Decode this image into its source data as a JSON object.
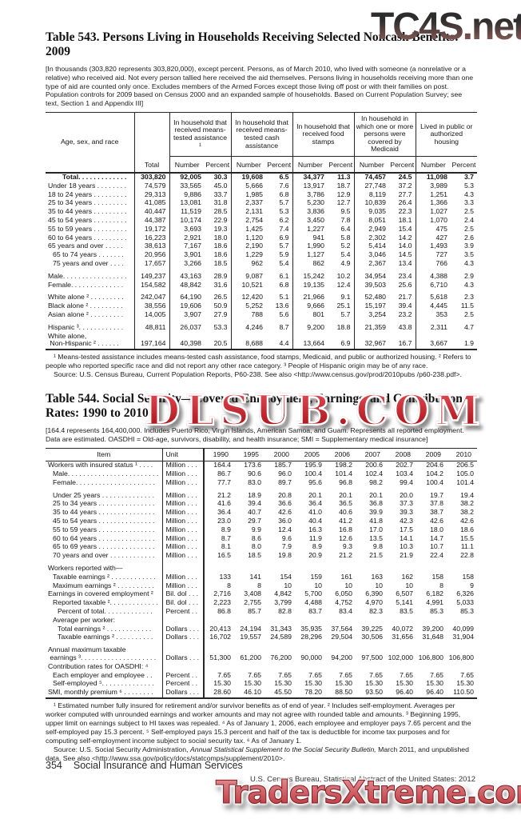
{
  "watermarks": {
    "top_right": "TC4S.net",
    "middle": "DLSUB.COM",
    "bottom": "TradersXtreme.com"
  },
  "table543": {
    "title": "Table 543. Persons Living in Households Receiving Selected Noncash Benefits: 2009",
    "note": "[In thousands (303,820 represents 303,820,000), except percent. Persons, as of March 2010, who lived with someone (a nonrelative or a relative) who received aid. Not every person tallied here received the aid themselves. Persons living in households receiving more than one type of aid are counted only once. Excludes members of the Armed Forces except those living off post or with their families on post. Population controls for 2009 based on Census 2000 and an expanded sample of households. Based on Current Population Survey; see text, Section 1 and Appendix III]",
    "header": {
      "stub": "Age, sex, and race",
      "total": "Total",
      "groups": [
        "In household that received means-tested assistance ¹",
        "In household that received means-tested cash assistance",
        "In household that received food stamps",
        "In household in which one or more persons were covered by Medicaid",
        "Lived in public or authorized housing"
      ],
      "sub": [
        "Number",
        "Percent"
      ]
    },
    "rows": [
      {
        "label": "Total. . . . . . . . . . . . .",
        "bold": true,
        "indent": 3,
        "values": [
          "303,820",
          "92,005",
          "30.3",
          "19,608",
          "6.5",
          "34,377",
          "11.3",
          "74,457",
          "24.5",
          "11,098",
          "3.7"
        ]
      },
      {
        "label": "Under 18 years . . . . . . . .",
        "values": [
          "74,579",
          "33,565",
          "45.0",
          "5,666",
          "7.6",
          "13,917",
          "18.7",
          "27,748",
          "37.2",
          "3,989",
          "5.3"
        ]
      },
      {
        "label": "18 to 24 years . . . . . . . . .",
        "values": [
          "29,313",
          "9,886",
          "33.7",
          "1,985",
          "6.8",
          "3,786",
          "12.9",
          "8,119",
          "27.7",
          "1,251",
          "4.3"
        ]
      },
      {
        "label": "25 to 34 years . . . . . . . . .",
        "values": [
          "41,085",
          "13,081",
          "31.8",
          "2,337",
          "5.7",
          "5,230",
          "12.7",
          "10,839",
          "26.4",
          "1,366",
          "3.3"
        ]
      },
      {
        "label": "35 to 44 years . . . . . . . . .",
        "values": [
          "40,447",
          "11,519",
          "28.5",
          "2,131",
          "5.3",
          "3,836",
          "9.5",
          "9,035",
          "22.3",
          "1,027",
          "2.5"
        ]
      },
      {
        "label": "45 to 54 years . . . . . . . . .",
        "values": [
          "44,387",
          "10,174",
          "22.9",
          "2,754",
          "6.2",
          "3,450",
          "7.8",
          "8,051",
          "18.1",
          "1,070",
          "2.4"
        ]
      },
      {
        "label": "55 to 59 years . . . . . . . . .",
        "values": [
          "19,172",
          "3,693",
          "19.3",
          "1,425",
          "7.4",
          "1,227",
          "6.4",
          "2,949",
          "15.4",
          "475",
          "2.5"
        ]
      },
      {
        "label": "60 to 64 years . . . . . . . . .",
        "values": [
          "16,223",
          "2,921",
          "18.0",
          "1,120",
          "6.9",
          "941",
          "5.8",
          "2,302",
          "14.2",
          "427",
          "2.6"
        ]
      },
      {
        "label": "65 years and over . . . . .",
        "values": [
          "38,613",
          "7,167",
          "18.6",
          "2,190",
          "5.7",
          "1,990",
          "5.2",
          "5,414",
          "14.0",
          "1,493",
          "3.9"
        ]
      },
      {
        "label": "65 to 74 years . . . . . . .",
        "indent": 1,
        "values": [
          "20,956",
          "3,901",
          "18.6",
          "1,229",
          "5.9",
          "1,127",
          "5.4",
          "3,046",
          "14.5",
          "727",
          "3.5"
        ]
      },
      {
        "label": "75 years and over . . . .",
        "indent": 1,
        "values": [
          "17,657",
          "3,266",
          "18.5",
          "962",
          "5.4",
          "862",
          "4.9",
          "2,367",
          "13.4",
          "766",
          "4.3"
        ]
      },
      {
        "label": "Male. . . . . . . . . . . . . . . . .",
        "gap": true,
        "values": [
          "149,237",
          "43,163",
          "28.9",
          "9,087",
          "6.1",
          "15,242",
          "10.2",
          "34,954",
          "23.4",
          "4,388",
          "2.9"
        ]
      },
      {
        "label": "Female. . . . . . . . . . . . . .",
        "values": [
          "154,582",
          "48,842",
          "31.6",
          "10,521",
          "6.8",
          "19,135",
          "12.4",
          "39,503",
          "25.6",
          "6,710",
          "4.3"
        ]
      },
      {
        "label": "White alone ² . . . . . . . . .",
        "gap": true,
        "values": [
          "242,047",
          "64,190",
          "26.5",
          "12,420",
          "5.1",
          "21,966",
          "9.1",
          "52,480",
          "21.7",
          "5,618",
          "2.3"
        ]
      },
      {
        "label": "Black alone ² . . . . . . . . .",
        "values": [
          "38,556",
          "19,606",
          "50.9",
          "5,252",
          "13.6",
          "9,666",
          "25.1",
          "15,197",
          "39.4",
          "4,445",
          "11.5"
        ]
      },
      {
        "label": "Asian alone ² . . . . . . . . .",
        "values": [
          "14,005",
          "3,907",
          "27.9",
          "788",
          "5.6",
          "801",
          "5.7",
          "3,254",
          "23.2",
          "353",
          "2.5"
        ]
      },
      {
        "label": "Hispanic ³. . . . . . . . . . . .",
        "gap": true,
        "values": [
          "48,811",
          "26,037",
          "53.3",
          "4,246",
          "8.7",
          "9,200",
          "18.8",
          "21,359",
          "43.8",
          "2,311",
          "4.7"
        ]
      },
      {
        "label": "White alone,",
        "label2": " Non-Hispanic ² . . . . . .",
        "values": [
          "197,164",
          "40,398",
          "20.5",
          "8,688",
          "4.4",
          "13,664",
          "6.9",
          "32,967",
          "16.7",
          "3,667",
          "1.9"
        ]
      }
    ],
    "footnotes": {
      "notes": "¹ Means-tested assistance includes means-tested cash assistance, food stamps, Medicaid, and public or authorized housing. ² Refers to people who reported specific race and did not report any other race category. ³ People of Hispanic origin may be of any race.",
      "source": "Source: U.S. Census Bureau, Current Population Reports,  P60-238. See also <http://www.census.gov/prod/2010pubs /p60-238.pdf>."
    }
  },
  "table544": {
    "title": "Table 544. Social Security—Covered Employment, Earnings, and Contribution Rates: 1990 to 2010",
    "note": "[164.4 represents 164,400,000. Includes Puerto Rico, Virgin Islands, American Samoa, and Guam. Represents all reported employment. Data are estimated. OASDHI = Old-age, survivors, disability, and health insurance; SMI = Supplementary medical insurance]",
    "columns": [
      "Item",
      "Unit",
      "1990",
      "1995",
      "2000",
      "2005",
      "2006",
      "2007",
      "2008",
      "2009",
      "2010"
    ],
    "rows": [
      {
        "label": "Workers with insured status ¹ . . . .",
        "unit": "Million . . .",
        "values": [
          "164.4",
          "173.6",
          "185.7",
          "195.9",
          "198.2",
          "200.6",
          "202.7",
          "204.6",
          "206.5"
        ]
      },
      {
        "label": "Male. . . . . . . . . . . . . . . . . . . . . . . .",
        "indent": 1,
        "unit": "Million . . .",
        "values": [
          "86.7",
          "90.6",
          "96.0",
          "100.4",
          "101.4",
          "102.4",
          "103.4",
          "104.2",
          "105.0"
        ]
      },
      {
        "label": "Female. . . . . . . . . . . . . . . . . . . . .",
        "indent": 1,
        "unit": "Million . . .",
        "values": [
          "77.7",
          "83.0",
          "89.7",
          "95.6",
          "96.8",
          "98.2",
          "99.4",
          "100.4",
          "101.4"
        ]
      },
      {
        "label": "Under 25 years . . . . . . . . . . . . . .",
        "indent": 1,
        "gap": true,
        "unit": "Million . . .",
        "values": [
          "21.2",
          "18.9",
          "20.8",
          "20.1",
          "20.1",
          "20.1",
          "20.0",
          "19.7",
          "19.4"
        ]
      },
      {
        "label": "25 to 34 years . . . . . . . . . . . . . . .",
        "indent": 1,
        "unit": "Million . . .",
        "values": [
          "41.6",
          "39.4",
          "36.6",
          "36.4",
          "36.5",
          "36.8",
          "37.3",
          "37.8",
          "38.2"
        ]
      },
      {
        "label": "35 to 44 years . . . . . . . . . . . . . . .",
        "indent": 1,
        "unit": "Million . . .",
        "values": [
          "36.4",
          "40.7",
          "42.6",
          "41.0",
          "40.6",
          "39.9",
          "39.3",
          "38.7",
          "38.2"
        ]
      },
      {
        "label": "45 to 54 years . . . . . . . . . . . . . . .",
        "indent": 1,
        "unit": "Million . . .",
        "values": [
          "23.0",
          "29.7",
          "36.0",
          "40.4",
          "41.2",
          "41.8",
          "42.3",
          "42.6",
          "42.6"
        ]
      },
      {
        "label": "55 to 59 years . . . . . . . . . . . . . . .",
        "indent": 1,
        "unit": "Million . . .",
        "values": [
          "8.9",
          "9.9",
          "12.4",
          "16.3",
          "16.8",
          "17.0",
          "17.5",
          "18.0",
          "18.6"
        ]
      },
      {
        "label": "60 to 64 years . . . . . . . . . . . . . . .",
        "indent": 1,
        "unit": "Million . . .",
        "values": [
          "8.7",
          "8.6",
          "9.6",
          "11.9",
          "12.6",
          "13.5",
          "14.1",
          "14.7",
          "15.5"
        ]
      },
      {
        "label": "65 to 69 years . . . . . . . . . . . . . . .",
        "indent": 1,
        "unit": "Million . . .",
        "values": [
          "8.1",
          "8.0",
          "7.9",
          "8.9",
          "9.3",
          "9.8",
          "10.3",
          "10.7",
          "11.1"
        ]
      },
      {
        "label": "70 years and over . . . . . . . . . . . .",
        "indent": 1,
        "unit": "Million . . .",
        "values": [
          "16.5",
          "18.5",
          "19.8",
          "20.9",
          "21.2",
          "21.5",
          "21.9",
          "22.4",
          "22.8"
        ]
      },
      {
        "label": "Workers reported with—",
        "gap": true,
        "unit": "",
        "values": []
      },
      {
        "label": "Taxable earnings ² . . . . . . . . . . . .",
        "indent": 1,
        "unit": "Million . . .",
        "values": [
          "133",
          "141",
          "154",
          "159",
          "161",
          "163",
          "162",
          "158",
          "158"
        ]
      },
      {
        "label": "Maximum earnings ² . . . . . . . . . .",
        "indent": 1,
        "unit": "Million . . .",
        "values": [
          "8",
          "8",
          "10",
          "10",
          "10",
          "10",
          "10",
          "8",
          "9"
        ]
      },
      {
        "label": "Earnings in covered employment ²",
        "unit": "Bil. dol . . .",
        "values": [
          "2,716",
          "3,408",
          "4,842",
          "5,700",
          "6,050",
          "6,390",
          "6,507",
          "6,182",
          "6,326"
        ]
      },
      {
        "label": "Reported taxable ². . . . . . . . . . . . .",
        "indent": 1,
        "unit": "Bil. dol . . .",
        "values": [
          "2,223",
          "2,755",
          "3,799",
          "4,488",
          "4,752",
          "4,970",
          "5,141",
          "4,991",
          "5,033"
        ]
      },
      {
        "label": "Percent of total. . . . . . . . . . . . .",
        "indent": 2,
        "unit": "Percent . .",
        "values": [
          "86.8",
          "85.7",
          "82.8",
          "83.7",
          "83.4",
          "82.3",
          "83.5",
          "85.3",
          "85.3"
        ]
      },
      {
        "label": "Average per worker:",
        "indent": 1,
        "unit": "",
        "values": []
      },
      {
        "label": "Total earnings ² . . . . . . . . . . . .",
        "indent": 2,
        "unit": "Dollars . . .",
        "values": [
          "20,413",
          "24,194",
          "31,343",
          "35,935",
          "37,564",
          "39,225",
          "40,072",
          "39,200",
          "40,099"
        ]
      },
      {
        "label": "Taxable earnings ² . . . . . . . . . .",
        "indent": 2,
        "unit": "Dollars . . .",
        "values": [
          "16,702",
          "19,557",
          "24,589",
          "28,296",
          "29,504",
          "30,506",
          "31,656",
          "31,648",
          "31,904"
        ]
      },
      {
        "label": "Annual maximum taxable",
        "label2": " earnings ³. . . . . . . . . . . . . . . . . . . .",
        "gap": true,
        "unit": "Dollars . . .",
        "values": [
          "51,300",
          "61,200",
          "76,200",
          "90,000",
          "94,200",
          "97,500",
          "102,000",
          "106,800",
          "106,800"
        ]
      },
      {
        "label": "Contribution rates for OASDHI: ⁴",
        "unit": "",
        "values": []
      },
      {
        "label": "Each employer and employee . .",
        "indent": 1,
        "unit": "Percent . .",
        "values": [
          "7.65",
          "7.65",
          "7.65",
          "7.65",
          "7.65",
          "7.65",
          "7.65",
          "7.65",
          "7.65"
        ]
      },
      {
        "label": "Self-employed ⁵. . . . . . . . . . . . . .",
        "indent": 1,
        "unit": "Percent . .",
        "values": [
          "15.30",
          "15.30",
          "15.30",
          "15.30",
          "15.30",
          "15.30",
          "15.30",
          "15.30",
          "15.30"
        ]
      },
      {
        "label": "SMI, monthly premium ⁶ . . . . . . . .",
        "unit": "Dollars . . .",
        "values": [
          "28.60",
          "46.10",
          "45.50",
          "78.20",
          "88.50",
          "93.50",
          "96.40",
          "96.40",
          "110.50"
        ]
      }
    ],
    "footnotes": {
      "notes": "¹ Estimated number fully insured for retirement and/or survivor benefits as of end of year. ² Includes self-employment. Averages per worker computed with unrounded earnings and worker amounts and may not agree with rounded table and amounts. ³ Beginning 1995, upper limit on earnings subject to HI taxes was repealed. ⁴ As of January 1, 2006, each employee and employer pays 7.65 percent and the self-employed pay 15.3 percent. ⁵ Self-employed pays 15.3 percent and half of the tax is deductible for income tax purposes and for computing self-employment income subject to social security tax. ⁶ As of January 1.",
      "source_prefix": "Source: U.S. Social Security Administration, ",
      "source_italic": "Annual Statistical Supplement to the Social Security Bulletin,",
      "source_suffix": " March 2011, and unpublished data. See also <http://www.ssa.gov/policy/docs/statcomps/supplement/2010>."
    }
  },
  "footer": {
    "page_number": "354",
    "section": "Social Insurance and Human Services",
    "right": "U.S. Census Bureau, Statistical Abstract of the United States: 2012"
  }
}
